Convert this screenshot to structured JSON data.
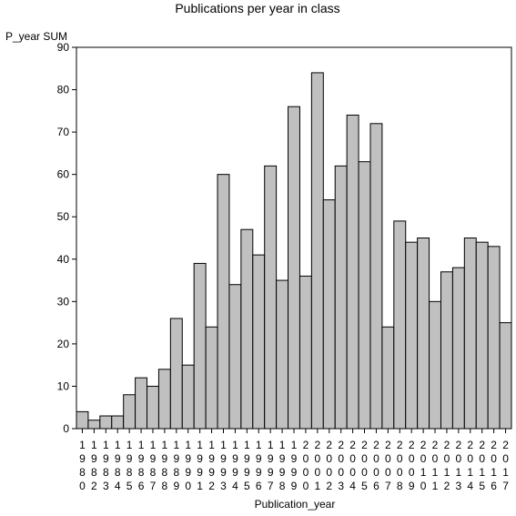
{
  "chart_data": {
    "type": "bar",
    "title": "Publications per year in class",
    "xlabel": "Publication_year",
    "ylabel": "P_year SUM",
    "ylim": [
      0,
      90
    ],
    "yticks": [
      0,
      10,
      20,
      30,
      40,
      50,
      60,
      70,
      80,
      90
    ],
    "grid": false,
    "categories": [
      "1980",
      "1982",
      "1983",
      "1984",
      "1985",
      "1986",
      "1987",
      "1988",
      "1989",
      "1990",
      "1991",
      "1992",
      "1993",
      "1994",
      "1995",
      "1996",
      "1997",
      "1998",
      "1999",
      "2000",
      "2001",
      "2002",
      "2003",
      "2004",
      "2005",
      "2006",
      "2007",
      "2008",
      "2009",
      "2010",
      "2011",
      "2012",
      "2013",
      "2014",
      "2015",
      "2016",
      "2017"
    ],
    "values": [
      4,
      2,
      3,
      3,
      8,
      12,
      10,
      14,
      26,
      15,
      39,
      24,
      60,
      34,
      47,
      41,
      62,
      35,
      76,
      36,
      84,
      54,
      62,
      74,
      63,
      72,
      24,
      49,
      44,
      45,
      30,
      37,
      38,
      45,
      44,
      43,
      25
    ],
    "colors": {
      "bar_fill": "#c0c0c0",
      "bar_stroke": "#000000",
      "axis": "#000000"
    }
  }
}
